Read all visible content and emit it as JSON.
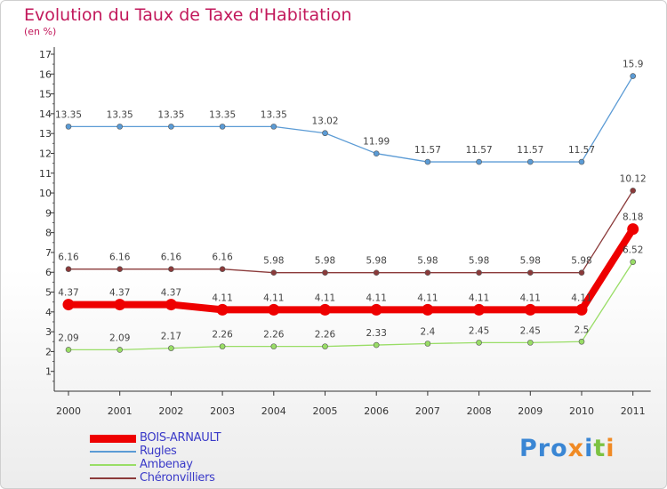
{
  "chart_data": {
    "type": "line",
    "title": "Evolution du Taux de Taxe d'Habitation",
    "subtitle": "(en %)",
    "x": [
      "2000",
      "2001",
      "2002",
      "2003",
      "2004",
      "2005",
      "2006",
      "2007",
      "2008",
      "2009",
      "2010",
      "2011"
    ],
    "ylim": [
      0,
      17
    ],
    "yticks": [
      1,
      2,
      3,
      4,
      5,
      6,
      7,
      8,
      9,
      10,
      11,
      12,
      13,
      14,
      15,
      16,
      17
    ],
    "grid": false,
    "legend_position": "bottom-left",
    "series": [
      {
        "name": "BOIS-ARNAULT",
        "color": "#ee0000",
        "values": [
          4.37,
          4.37,
          4.37,
          4.11,
          4.11,
          4.11,
          4.11,
          4.11,
          4.11,
          4.11,
          4.11,
          8.18
        ],
        "labels": [
          "4.37",
          "4.37",
          "4.37",
          "4.11",
          "4.11",
          "4.11",
          "4.11",
          "4.11",
          "4.11",
          "4.11",
          "4.11",
          "8.18"
        ]
      },
      {
        "name": "Rugles",
        "color": "#5b9bd5",
        "values": [
          13.35,
          13.35,
          13.35,
          13.35,
          13.35,
          13.02,
          11.99,
          11.57,
          11.57,
          11.57,
          11.57,
          15.9
        ],
        "labels": [
          "13.35",
          "13.35",
          "13.35",
          "13.35",
          "13.35",
          "13.02",
          "11.99",
          "11.57",
          "11.57",
          "11.57",
          "11.57",
          "15.9"
        ]
      },
      {
        "name": "Ambenay",
        "color": "#99dd66",
        "values": [
          2.09,
          2.09,
          2.17,
          2.26,
          2.26,
          2.26,
          2.33,
          2.4,
          2.45,
          2.45,
          2.5,
          6.52
        ],
        "labels": [
          "2.09",
          "2.09",
          "2.17",
          "2.26",
          "2.26",
          "2.26",
          "2.33",
          "2.4",
          "2.45",
          "2.45",
          "2.5",
          "6.52"
        ]
      },
      {
        "name": "Chéronvilliers",
        "color": "#8b3a3a",
        "values": [
          6.16,
          6.16,
          6.16,
          6.16,
          5.98,
          5.98,
          5.98,
          5.98,
          5.98,
          5.98,
          5.98,
          10.12
        ],
        "labels": [
          "6.16",
          "6.16",
          "6.16",
          "6.16",
          "5.98",
          "5.98",
          "5.98",
          "5.98",
          "5.98",
          "5.98",
          "5.98",
          "10.12"
        ]
      }
    ]
  },
  "logo": {
    "text": "Proxiti"
  }
}
